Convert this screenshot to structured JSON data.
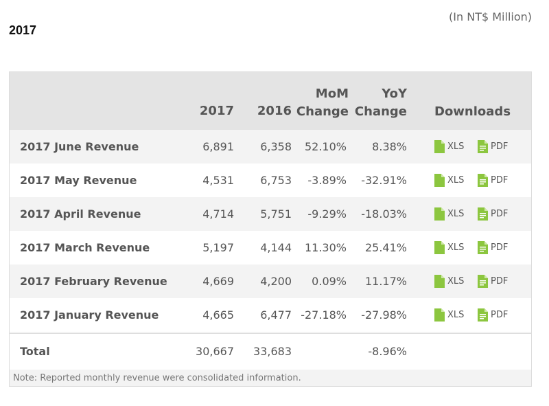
{
  "unit_note": "(In NT$ Million)",
  "year_title": "2017",
  "headers": {
    "col_2017": "2017",
    "col_2016": "2016",
    "mom_line1": "MoM",
    "mom_line2": "Change",
    "yoy_line1": "YoY",
    "yoy_line2": "Change",
    "downloads": "Downloads"
  },
  "rows": [
    {
      "name": "2017 June Revenue",
      "v2017": "6,891",
      "v2016": "6,358",
      "mom": "52.10%",
      "yoy": "8.38%",
      "xls": "XLS",
      "pdf": "PDF"
    },
    {
      "name": "2017 May Revenue",
      "v2017": "4,531",
      "v2016": "6,753",
      "mom": "-3.89%",
      "yoy": "-32.91%",
      "xls": "XLS",
      "pdf": "PDF"
    },
    {
      "name": "2017 April Revenue",
      "v2017": "4,714",
      "v2016": "5,751",
      "mom": "-9.29%",
      "yoy": "-18.03%",
      "xls": "XLS",
      "pdf": "PDF"
    },
    {
      "name": "2017 March Revenue",
      "v2017": "5,197",
      "v2016": "4,144",
      "mom": "11.30%",
      "yoy": "25.41%",
      "xls": "XLS",
      "pdf": "PDF"
    },
    {
      "name": "2017 February Revenue",
      "v2017": "4,669",
      "v2016": "4,200",
      "mom": "0.09%",
      "yoy": "11.17%",
      "xls": "XLS",
      "pdf": "PDF"
    },
    {
      "name": "2017 January Revenue",
      "v2017": "4,665",
      "v2016": "6,477",
      "mom": "-27.18%",
      "yoy": "-27.98%",
      "xls": "XLS",
      "pdf": "PDF"
    }
  ],
  "total": {
    "name": "Total",
    "v2017": "30,667",
    "v2016": "33,683",
    "mom": "",
    "yoy": "-8.96%"
  },
  "footnote": "Note: Reported monthly revenue were consolidated information.",
  "colors": {
    "icon_green": "#8cc63f",
    "header_bg": "#e4e4e4",
    "row_alt_bg": "#f3f3f3"
  },
  "icons": {
    "xls": "spreadsheet-file-icon",
    "pdf": "document-file-icon"
  }
}
